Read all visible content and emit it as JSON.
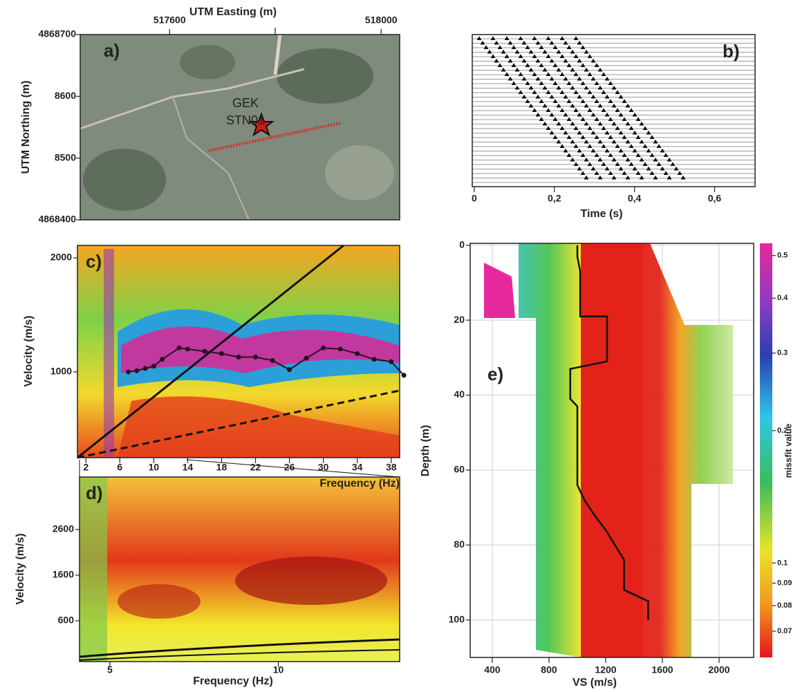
{
  "panels": {
    "a": {
      "label": "a)",
      "xlabel": "UTM Easting (m)",
      "ylabel": "UTM Northing (m)",
      "site": [
        "GEK",
        "STN01"
      ],
      "xlim": [
        517431,
        518035
      ],
      "xticks": [
        517600,
        518000
      ],
      "ylim": [
        4868400,
        4868700
      ],
      "yticks": [
        4868700,
        {
          "value": 4868600,
          "label": "8600"
        },
        {
          "value": 4868500,
          "label": "8500"
        },
        4868400
      ]
    },
    "b": {
      "label": "b)",
      "xlabel": "Time (s)",
      "xlim": [
        -0.005,
        0.701
      ],
      "xticks": [
        0,
        {
          "value": 0.2,
          "label": "0,2"
        },
        {
          "value": 0.4,
          "label": "0,4"
        },
        {
          "value": 0.6,
          "label": "0,6"
        }
      ]
    },
    "c": {
      "label": "c)",
      "xlabel": "Frequency (Hz)",
      "ylabel": "Velocity (m/s)",
      "xlim": [
        1,
        39
      ],
      "xticks": [
        2,
        6,
        10,
        14,
        18,
        22,
        26,
        30,
        34,
        38
      ],
      "ylim": [
        248,
        2109
      ],
      "yticks": [
        1000,
        2000
      ],
      "curve": {
        "frequency": [
          7,
          8,
          9,
          10,
          11,
          13,
          14,
          16,
          18,
          20,
          22,
          24,
          26,
          28,
          30,
          32,
          34,
          36,
          38,
          39.5
        ],
        "velocity": [
          1000,
          1010,
          1030,
          1050,
          1110,
          1210,
          1200,
          1180,
          1160,
          1130,
          1130,
          1100,
          1020,
          1120,
          1210,
          1200,
          1160,
          1110,
          1090,
          970
        ]
      }
    },
    "d": {
      "label": "d)",
      "xlabel": "Frequency (Hz)",
      "ylabel": "Velocity (m/s)",
      "xlim": [
        4.1,
        13.6
      ],
      "xticks": [
        5,
        10
      ],
      "ylim": [
        -294,
        3750
      ],
      "yticks": [
        600,
        1600,
        2600
      ]
    },
    "e": {
      "label": "e)",
      "xlabel": "VS (m/s)",
      "ylabel": "Depth (m)",
      "grid": true,
      "xlim": [
        244,
        2244
      ],
      "xticks": [
        400,
        800,
        1200,
        1600,
        2000
      ],
      "ylim": [
        110,
        -0.5
      ],
      "yticks": [
        0,
        20,
        40,
        60,
        80,
        100
      ],
      "profile": {
        "vs": [
          1000,
          1000,
          1020,
          1020,
          1210,
          1210,
          950,
          950,
          1000,
          1000,
          1050,
          1120,
          1200,
          1330,
          1330,
          1500,
          1500
        ],
        "depth": [
          0,
          3,
          7,
          19,
          19,
          31,
          33,
          41,
          43,
          64,
          68,
          72,
          76,
          84,
          92,
          95,
          100
        ]
      },
      "colorbar": {
        "label": "missfit value",
        "lim": [
          0.061,
          0.533
        ],
        "log": true,
        "ticks": [
          0.5,
          0.4,
          0.3,
          0.2,
          0.1,
          0.09,
          0.08,
          0.07
        ]
      }
    }
  }
}
